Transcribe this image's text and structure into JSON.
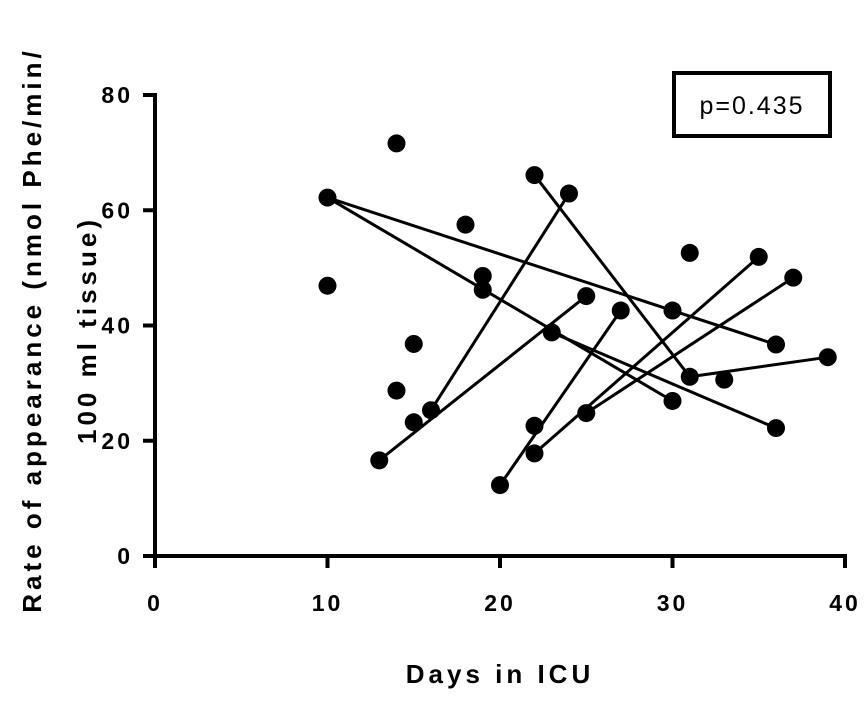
{
  "chart_data": {
    "type": "scatter",
    "title": "",
    "xlabel": "Days in ICU",
    "ylabel_line1": "Rate of appearance (nmol Phe/min/",
    "ylabel_line2": "100 ml tissue)",
    "xlim": [
      0,
      40
    ],
    "ylim": [
      0,
      80
    ],
    "x_ticks": [
      0,
      10,
      20,
      30,
      40
    ],
    "y_ticks": [
      0,
      20,
      40,
      60,
      80
    ],
    "x_tick_labels": [
      "0",
      "10",
      "20",
      "30",
      "40"
    ],
    "y_tick_labels": [
      "0",
      "20",
      "40",
      "60",
      "80"
    ],
    "grid": false,
    "legend": "none",
    "annotation": "p=0.435",
    "annotation_position": "top-right",
    "colors": {
      "points": "#000000",
      "lines": "#000000",
      "axes": "#000000"
    },
    "points": [
      {
        "x": 10,
        "y": 62.2
      },
      {
        "x": 10,
        "y": 46.9
      },
      {
        "x": 13,
        "y": 16.6
      },
      {
        "x": 14,
        "y": 71.6
      },
      {
        "x": 14,
        "y": 28.7
      },
      {
        "x": 15,
        "y": 36.8
      },
      {
        "x": 15,
        "y": 23.2
      },
      {
        "x": 16,
        "y": 25.3
      },
      {
        "x": 18,
        "y": 57.5
      },
      {
        "x": 19,
        "y": 48.6
      },
      {
        "x": 19,
        "y": 46.2
      },
      {
        "x": 20,
        "y": 12.3
      },
      {
        "x": 22,
        "y": 66.1
      },
      {
        "x": 22,
        "y": 22.6
      },
      {
        "x": 22,
        "y": 17.8
      },
      {
        "x": 23,
        "y": 38.8
      },
      {
        "x": 24,
        "y": 62.9
      },
      {
        "x": 25,
        "y": 45.1
      },
      {
        "x": 25,
        "y": 24.8
      },
      {
        "x": 27,
        "y": 42.6
      },
      {
        "x": 30,
        "y": 42.6
      },
      {
        "x": 30,
        "y": 26.9
      },
      {
        "x": 31,
        "y": 52.6
      },
      {
        "x": 31,
        "y": 31.1
      },
      {
        "x": 33,
        "y": 30.6
      },
      {
        "x": 35,
        "y": 51.9
      },
      {
        "x": 36,
        "y": 36.7
      },
      {
        "x": 36,
        "y": 22.2
      },
      {
        "x": 37,
        "y": 48.3
      },
      {
        "x": 39,
        "y": 34.5
      }
    ],
    "segments": [
      {
        "x1": 10,
        "y1": 62.2,
        "x2": 30,
        "y2": 42.6
      },
      {
        "x1": 10,
        "y1": 62.2,
        "x2": 30,
        "y2": 26.9
      },
      {
        "x1": 30,
        "y1": 42.6,
        "x2": 36,
        "y2": 36.7
      },
      {
        "x1": 13,
        "y1": 16.6,
        "x2": 25,
        "y2": 45.1
      },
      {
        "x1": 16,
        "y1": 25.3,
        "x2": 24,
        "y2": 62.9
      },
      {
        "x1": 20,
        "y1": 12.3,
        "x2": 27,
        "y2": 42.6
      },
      {
        "x1": 22,
        "y1": 66.1,
        "x2": 31,
        "y2": 31.1
      },
      {
        "x1": 22,
        "y1": 17.8,
        "x2": 35,
        "y2": 51.9
      },
      {
        "x1": 23,
        "y1": 38.8,
        "x2": 36,
        "y2": 22.2
      },
      {
        "x1": 25,
        "y1": 24.8,
        "x2": 37,
        "y2": 48.3
      },
      {
        "x1": 31,
        "y1": 31.1,
        "x2": 39,
        "y2": 34.5
      }
    ]
  }
}
